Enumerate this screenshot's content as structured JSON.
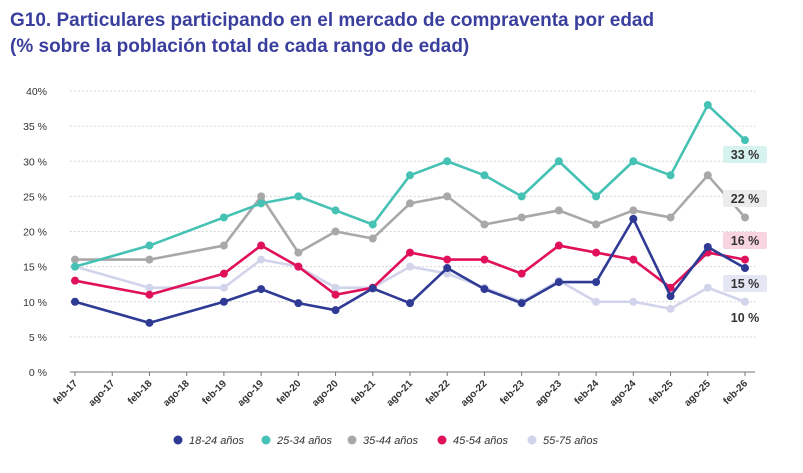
{
  "title": {
    "line1": "G10. Particulares participando en el mercado de compraventa por edad",
    "line2": "(% sobre la población total de cada rango de edad)"
  },
  "colors": {
    "title": "#3a3f9e",
    "18-24": "#2e3a94",
    "25-34": "#45c2b4",
    "35-44": "#a8a8a8",
    "45-54": "#e0105a",
    "55-75": "#d2d4ec"
  },
  "chart_data": {
    "type": "line",
    "x_ticks": [
      "feb-17",
      "ago-17",
      "feb-18",
      "ago-18",
      "feb-19",
      "ago-19",
      "feb-20",
      "ago-20",
      "feb-21",
      "ago-21",
      "feb-22",
      "ago-22",
      "feb-23",
      "ago-23",
      "feb-24",
      "ago-24",
      "feb-25",
      "ago-25",
      "feb-26"
    ],
    "y_ticks": [
      "0 %",
      "5 %",
      "10 %",
      "15 %",
      "20 %",
      "25 %",
      "30 %",
      "35 %",
      "40%"
    ],
    "ylim": [
      0,
      40
    ],
    "x": [
      "feb-17",
      "feb-18",
      "feb-19",
      "ago-19",
      "feb-20",
      "ago-20",
      "feb-21",
      "ago-21",
      "feb-22",
      "ago-22",
      "feb-23",
      "ago-23",
      "feb-24",
      "ago-24",
      "feb-25",
      "ago-25",
      "feb-26"
    ],
    "series": [
      {
        "name": "18-24 años",
        "color_key": "18-24",
        "values": [
          10,
          7,
          10,
          11.8,
          9.8,
          8.8,
          11.9,
          9.8,
          14.8,
          11.8,
          9.8,
          12.8,
          12.8,
          21.8,
          10.8,
          17.8,
          14.8
        ],
        "end_label": "15 %",
        "end_label_bg": "#e4e6f4"
      },
      {
        "name": "25-34 años",
        "color_key": "25-34",
        "values": [
          15,
          18,
          22,
          24,
          25,
          23,
          21,
          28,
          30,
          28,
          25,
          30,
          25,
          30,
          28,
          38,
          33
        ],
        "end_label": "33 %",
        "end_label_bg": "#d6f3f0"
      },
      {
        "name": "35-44 años",
        "color_key": "35-44",
        "values": [
          16,
          16,
          18,
          25,
          17,
          20,
          19,
          24,
          25,
          21,
          22,
          23,
          21,
          23,
          22,
          28,
          22
        ],
        "end_label": "22 %",
        "end_label_bg": "#ececec"
      },
      {
        "name": "45-54 años",
        "color_key": "45-54",
        "values": [
          13,
          11,
          14,
          18,
          15,
          11,
          12,
          17,
          16,
          16,
          14,
          18,
          17,
          16,
          12,
          17,
          16
        ],
        "end_label": "16 %",
        "end_label_bg": "#f8d4e0"
      },
      {
        "name": "55-75 años",
        "color_key": "55-75",
        "values": [
          15,
          12,
          12,
          16,
          15,
          12,
          12,
          15,
          14,
          12,
          10,
          13,
          10,
          10,
          9,
          12,
          10
        ],
        "end_label": "10 %",
        "end_label_bg": "#ffffff"
      }
    ],
    "legend_position": "bottom",
    "grid": "horizontal dotted"
  }
}
